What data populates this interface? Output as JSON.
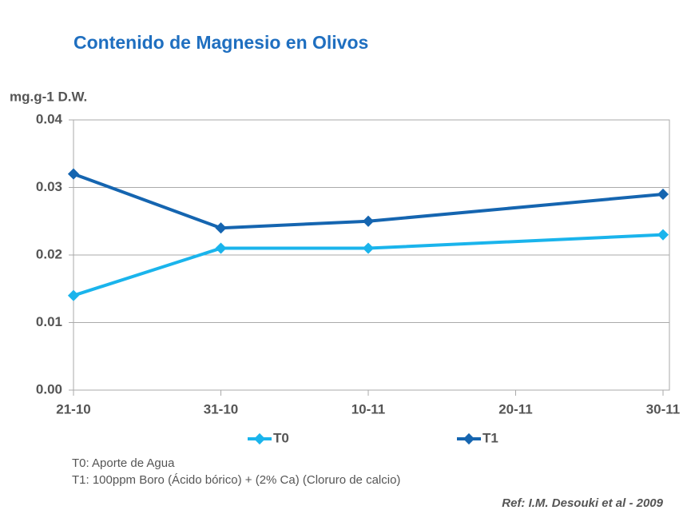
{
  "chart_data": {
    "type": "line",
    "title": "Contenido de Magnesio en Olivos",
    "y_label": "mg.g-1 D.W.",
    "categories": [
      "21-10",
      "31-10",
      "10-11",
      "20-11",
      "30-11"
    ],
    "series": [
      {
        "name": "T0",
        "color": "#1ab4ec",
        "x": [
          "21-10",
          "31-10",
          "10-11",
          "30-11"
        ],
        "values": [
          0.014,
          0.021,
          0.021,
          0.023
        ]
      },
      {
        "name": "T1",
        "color": "#1565b0",
        "x": [
          "21-10",
          "31-10",
          "10-11",
          "30-11"
        ],
        "values": [
          0.032,
          0.024,
          0.025,
          0.029
        ]
      }
    ],
    "ylim": [
      0,
      0.04
    ],
    "yticks": [
      {
        "value": 0,
        "label": "0.00"
      },
      {
        "value": 0.01,
        "label": "0.01"
      },
      {
        "value": 0.02,
        "label": "0.02"
      },
      {
        "value": 0.03,
        "label": "0.03"
      },
      {
        "value": 0.04,
        "label": "0.04"
      }
    ],
    "grid": true,
    "notes": [
      "T0: Aporte de Agua",
      "T1: 100ppm Boro (Ácido bórico) + (2% Ca) (Cloruro de calcio)"
    ],
    "reference": "Ref: I.M. Desouki et al - 2009"
  }
}
